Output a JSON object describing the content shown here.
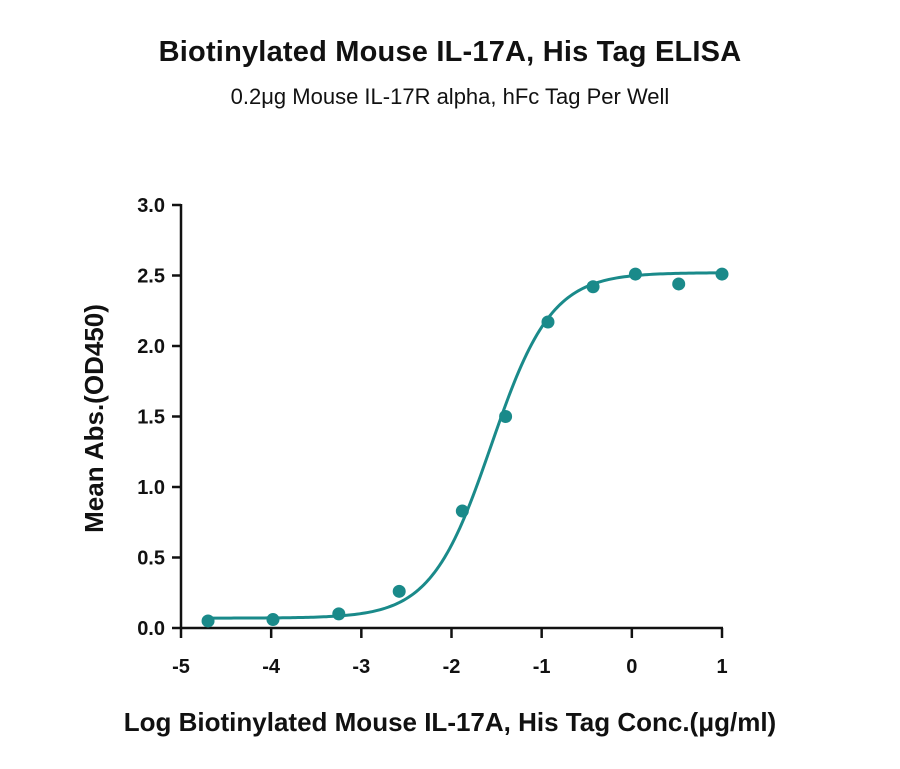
{
  "chart_data": {
    "type": "scatter",
    "title": "Biotinylated Mouse IL-17A, His Tag ELISA",
    "subtitle": "0.2μg Mouse IL-17R alpha, hFc Tag Per Well",
    "xlabel": "Log Biotinylated Mouse IL-17A, His Tag Conc.(μg/ml)",
    "ylabel": "Mean Abs.(OD450)",
    "xlim": [
      -5,
      1
    ],
    "ylim": [
      0,
      3.0
    ],
    "x_ticks": [
      "-5",
      "-4",
      "-3",
      "-2",
      "-1",
      "0",
      "1"
    ],
    "y_ticks": [
      "0.0",
      "0.5",
      "1.0",
      "1.5",
      "2.0",
      "2.5",
      "3.0"
    ],
    "grid": false,
    "color": "#1a8a8a",
    "series": [
      {
        "x": [
          -4.7,
          -3.98,
          -3.25,
          -2.58,
          -1.88,
          -1.4,
          -0.93,
          -0.43,
          0.04,
          0.52,
          1.0
        ],
        "y": [
          0.05,
          0.06,
          0.1,
          0.26,
          0.83,
          1.5,
          2.17,
          2.42,
          2.51,
          2.44,
          2.51
        ]
      }
    ],
    "fit": {
      "model": "4PL",
      "bottom": 0.07,
      "top": 2.52,
      "log_ec50": -1.56,
      "hill_slope": 1.3
    }
  }
}
